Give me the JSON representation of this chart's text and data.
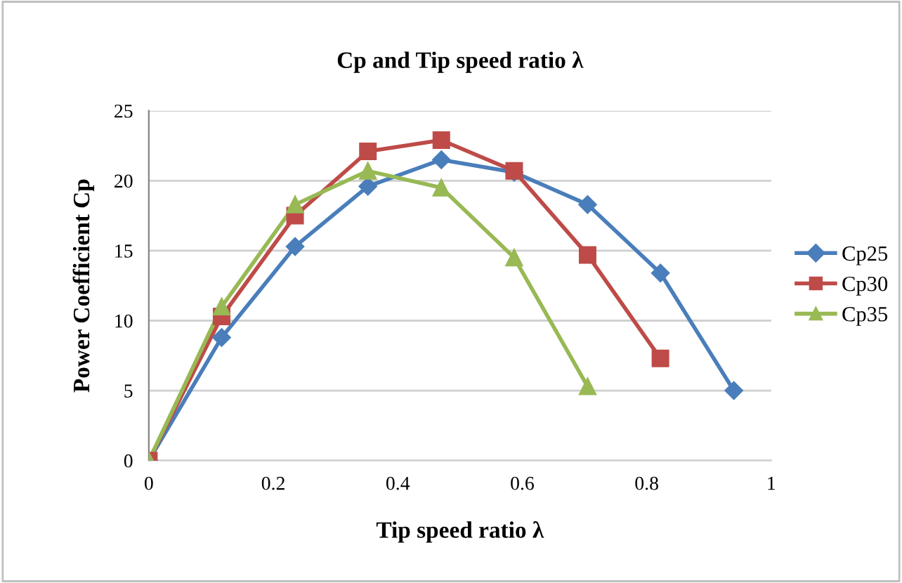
{
  "chart_data": {
    "type": "line",
    "title": "Cp and Tip speed ratio λ",
    "xlabel": "Tip speed ratio λ",
    "ylabel": "Power Coefficient Cp",
    "x": [
      0,
      0.117,
      0.235,
      0.352,
      0.47,
      0.587,
      0.705,
      0.822,
      0.94
    ],
    "series": [
      {
        "name": "Cp25",
        "color": "#4a7ebb",
        "marker": "diamond",
        "values": [
          0,
          8.8,
          15.3,
          19.6,
          21.5,
          20.6,
          18.3,
          13.4,
          5.0
        ]
      },
      {
        "name": "Cp30",
        "color": "#be4b48",
        "marker": "square",
        "values": [
          0,
          10.3,
          17.5,
          22.1,
          22.9,
          20.7,
          14.7,
          7.3,
          null
        ]
      },
      {
        "name": "Cp35",
        "color": "#98b954",
        "marker": "triangle",
        "values": [
          0,
          11.0,
          18.3,
          20.7,
          19.5,
          14.5,
          5.3,
          null,
          null
        ]
      }
    ],
    "xlim": [
      0,
      1
    ],
    "xticks": [
      0,
      0.2,
      0.4,
      0.6,
      0.8,
      1
    ],
    "ylim": [
      0,
      25
    ],
    "yticks": [
      0,
      5,
      10,
      15,
      20,
      25
    ],
    "grid": "y",
    "legend": "right"
  }
}
